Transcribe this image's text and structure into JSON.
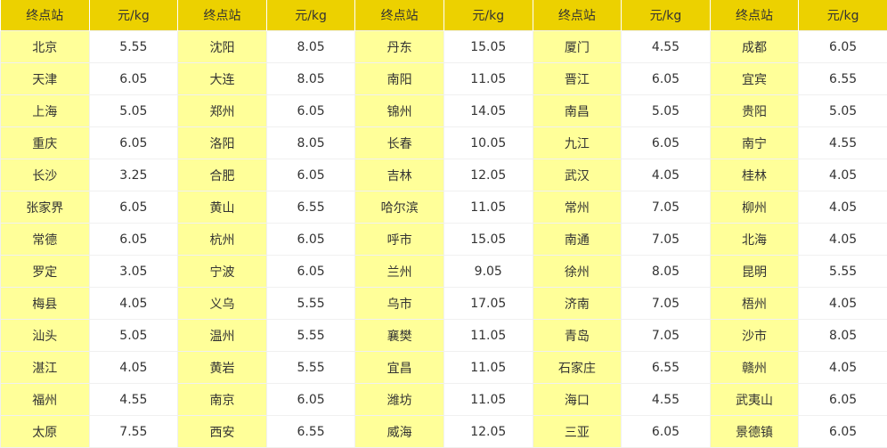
{
  "header": {
    "station": "终点站",
    "price": "元/kg"
  },
  "colors": {
    "header_bg": "#ecd100",
    "station_bg": "#ffff99",
    "price_bg": "#ffffff"
  },
  "rows": [
    [
      [
        "北京",
        "5.55"
      ],
      [
        "沈阳",
        "8.05"
      ],
      [
        "丹东",
        "15.05"
      ],
      [
        "厦门",
        "4.55"
      ],
      [
        "成都",
        "6.05"
      ]
    ],
    [
      [
        "天津",
        "6.05"
      ],
      [
        "大连",
        "8.05"
      ],
      [
        "南阳",
        "11.05"
      ],
      [
        "晋江",
        "6.05"
      ],
      [
        "宜宾",
        "6.55"
      ]
    ],
    [
      [
        "上海",
        "5.05"
      ],
      [
        "郑州",
        "6.05"
      ],
      [
        "锦州",
        "14.05"
      ],
      [
        "南昌",
        "5.05"
      ],
      [
        "贵阳",
        "5.05"
      ]
    ],
    [
      [
        "重庆",
        "6.05"
      ],
      [
        "洛阳",
        "8.05"
      ],
      [
        "长春",
        "10.05"
      ],
      [
        "九江",
        "6.05"
      ],
      [
        "南宁",
        "4.55"
      ]
    ],
    [
      [
        "长沙",
        "3.25"
      ],
      [
        "合肥",
        "6.05"
      ],
      [
        "吉林",
        "12.05"
      ],
      [
        "武汉",
        "4.05"
      ],
      [
        "桂林",
        "4.05"
      ]
    ],
    [
      [
        "张家界",
        "6.05"
      ],
      [
        "黄山",
        "6.55"
      ],
      [
        "哈尔滨",
        "11.05"
      ],
      [
        "常州",
        "7.05"
      ],
      [
        "柳州",
        "4.05"
      ]
    ],
    [
      [
        "常德",
        "6.05"
      ],
      [
        "杭州",
        "6.05"
      ],
      [
        "呼市",
        "15.05"
      ],
      [
        "南通",
        "7.05"
      ],
      [
        "北海",
        "4.05"
      ]
    ],
    [
      [
        "罗定",
        "3.05"
      ],
      [
        "宁波",
        "6.05"
      ],
      [
        "兰州",
        "9.05"
      ],
      [
        "徐州",
        "8.05"
      ],
      [
        "昆明",
        "5.55"
      ]
    ],
    [
      [
        "梅县",
        "4.05"
      ],
      [
        "义乌",
        "5.55"
      ],
      [
        "乌市",
        "17.05"
      ],
      [
        "济南",
        "7.05"
      ],
      [
        "梧州",
        "4.05"
      ]
    ],
    [
      [
        "汕头",
        "5.05"
      ],
      [
        "温州",
        "5.55"
      ],
      [
        "襄樊",
        "11.05"
      ],
      [
        "青岛",
        "7.05"
      ],
      [
        "沙市",
        "8.05"
      ]
    ],
    [
      [
        "湛江",
        "4.05"
      ],
      [
        "黄岩",
        "5.55"
      ],
      [
        "宜昌",
        "11.05"
      ],
      [
        "石家庄",
        "6.55"
      ],
      [
        "赣州",
        "4.05"
      ]
    ],
    [
      [
        "福州",
        "4.55"
      ],
      [
        "南京",
        "6.05"
      ],
      [
        "潍坊",
        "11.05"
      ],
      [
        "海口",
        "4.55"
      ],
      [
        "武夷山",
        "6.05"
      ]
    ],
    [
      [
        "太原",
        "7.55"
      ],
      [
        "西安",
        "6.55"
      ],
      [
        "威海",
        "12.05"
      ],
      [
        "三亚",
        "6.05"
      ],
      [
        "景德镇",
        "6.05"
      ]
    ]
  ]
}
